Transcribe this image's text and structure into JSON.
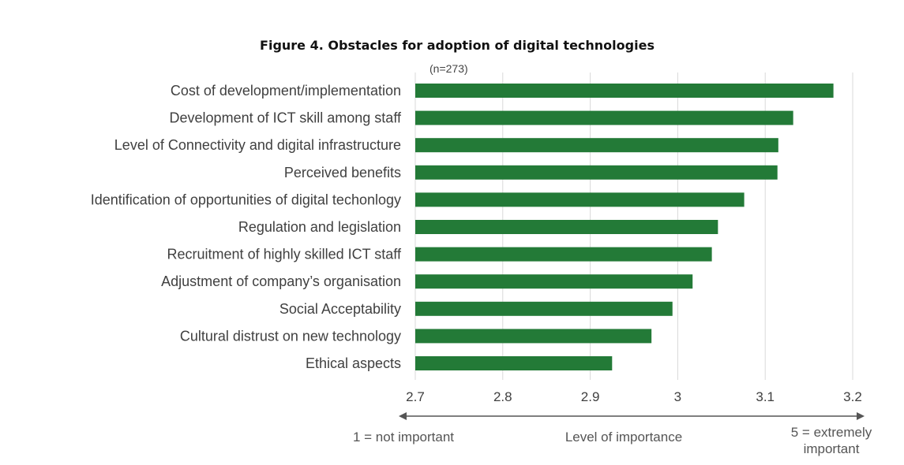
{
  "chart_data": {
    "type": "bar",
    "orientation": "horizontal",
    "title": "Figure 4. Obstacles for adoption of digital technologies",
    "subtitle": "(n=273)",
    "categories": [
      "Cost of development/implementation",
      "Development of ICT skill among staff",
      "Level of Connectivity and digital infrastructure",
      "Perceived benefits",
      "Identification of opportunities of digital techonlogy",
      "Regulation and legislation",
      "Recruitment of highly skilled ICT staff",
      "Adjustment of company’s organisation",
      "Social Acceptability",
      "Cultural distrust on new technology",
      "Ethical aspects"
    ],
    "values": [
      3.178,
      3.132,
      3.115,
      3.114,
      3.076,
      3.046,
      3.039,
      3.017,
      2.994,
      2.97,
      2.925
    ],
    "xlim": [
      2.7,
      3.2
    ],
    "xticks": [
      "2.7",
      "2.8",
      "2.9",
      "3",
      "3.1",
      "3.2"
    ],
    "xtick_values": [
      2.7,
      2.8,
      2.9,
      3.0,
      3.1,
      3.2
    ],
    "xlabel": "Level of importance",
    "left_note": "1 = not important",
    "right_note_line1": "5 =  extremely",
    "right_note_line2": "important",
    "grid": true,
    "bar_color": "#237a37",
    "grid_color": "#d9d9d9",
    "arrow_color": "#555555"
  }
}
